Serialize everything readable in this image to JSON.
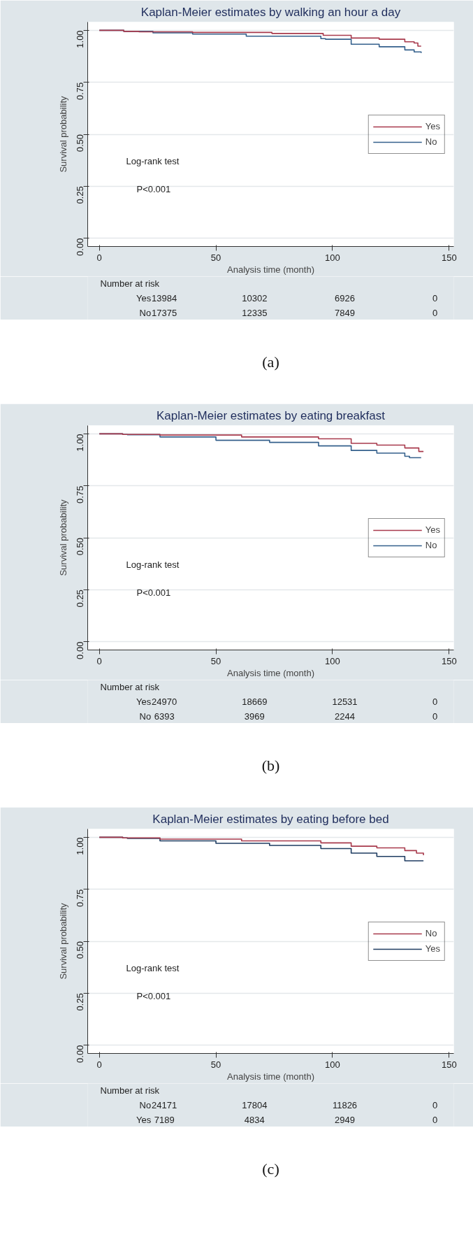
{
  "chart_data": [
    {
      "type": "step",
      "title": "Kaplan-Meier estimates by walking an hour a day",
      "xlabel": "Analysis time (month)",
      "ylabel": "Survival probability",
      "xlim": [
        -5,
        152
      ],
      "ylim": [
        -0.04,
        1.04
      ],
      "xticks": [
        0,
        50,
        100,
        150
      ],
      "yticks": [
        {
          "value": 0,
          "label": "0.00"
        },
        {
          "value": 0.25,
          "label": "0.25"
        },
        {
          "value": 0.5,
          "label": "0.50"
        },
        {
          "value": 0.75,
          "label": "0.75"
        },
        {
          "value": 1,
          "label": "1.00"
        }
      ],
      "grid": "y",
      "legend": "right",
      "line_style": "solid",
      "series": [
        {
          "name": "Yes",
          "color": "#a83a4c",
          "x": [
            0,
            10.5,
            12,
            17,
            40,
            74,
            96,
            108,
            120,
            131,
            135,
            136.6,
            138
          ],
          "values": [
            1,
            0.995,
            0.995,
            0.993,
            0.99,
            0.985,
            0.976,
            0.963,
            0.957,
            0.945,
            0.939,
            0.924,
            0.924
          ]
        },
        {
          "name": "No",
          "color": "#34608c",
          "x": [
            0,
            10.5,
            23,
            40,
            63,
            95,
            97,
            108,
            120,
            131,
            135,
            138
          ],
          "values": [
            1,
            0.995,
            0.988,
            0.982,
            0.972,
            0.96,
            0.957,
            0.933,
            0.921,
            0.906,
            0.896,
            0.891
          ]
        }
      ],
      "annotations": [
        "Log-rank test",
        "P<0.001",
        "Number at risk",
        "Yes",
        "13984",
        "10302",
        "6926",
        "0",
        "No",
        "17375",
        "12335",
        "7849",
        "0",
        "(a)"
      ]
    },
    {
      "type": "step",
      "title": "Kaplan-Meier estimates by eating breakfast",
      "xlabel": "Analysis time (month)",
      "ylabel": "Survival probability",
      "xlim": [
        -5,
        152
      ],
      "ylim": [
        -0.04,
        1.04
      ],
      "xticks": [
        0,
        50,
        100,
        150
      ],
      "yticks": [
        {
          "value": 0,
          "label": "0.00"
        },
        {
          "value": 0.25,
          "label": "0.25"
        },
        {
          "value": 0.5,
          "label": "0.50"
        },
        {
          "value": 0.75,
          "label": "0.75"
        },
        {
          "value": 1,
          "label": "1.00"
        }
      ],
      "grid": "y",
      "legend": "right",
      "line_style": "solid",
      "series": [
        {
          "name": "Yes",
          "color": "#a83a4c",
          "x": [
            0,
            10,
            26,
            61,
            94,
            108,
            119,
            131,
            137,
            139
          ],
          "values": [
            1,
            0.997,
            0.994,
            0.985,
            0.976,
            0.954,
            0.946,
            0.932,
            0.915,
            0.915
          ]
        },
        {
          "name": "No",
          "color": "#34608c",
          "x": [
            0,
            10,
            12,
            26,
            50,
            73,
            94,
            108,
            119,
            131,
            133,
            138
          ],
          "values": [
            1,
            0.997,
            0.996,
            0.985,
            0.969,
            0.959,
            0.942,
            0.92,
            0.907,
            0.892,
            0.885,
            0.885
          ]
        }
      ],
      "annotations": [
        "Log-rank test",
        "P<0.001",
        "Number at risk",
        "Yes",
        "24970",
        "18669",
        "12531",
        "0",
        "No",
        "6393",
        "3969",
        "2244",
        "0",
        "(b)"
      ]
    },
    {
      "type": "step",
      "title": "Kaplan-Meier estimates by eating before bed",
      "xlabel": "Analysis time (month)",
      "ylabel": "Survival probability",
      "xlim": [
        -5,
        152
      ],
      "ylim": [
        -0.04,
        1.04
      ],
      "xticks": [
        0,
        50,
        100,
        150
      ],
      "yticks": [
        {
          "value": 0,
          "label": "0.00"
        },
        {
          "value": 0.25,
          "label": "0.25"
        },
        {
          "value": 0.5,
          "label": "0.50"
        },
        {
          "value": 0.75,
          "label": "0.75"
        },
        {
          "value": 1,
          "label": "1.00"
        }
      ],
      "grid": "y",
      "legend": "right",
      "line_style": "solid",
      "series": [
        {
          "name": "No",
          "color": "#a83a4c",
          "x": [
            0,
            10,
            26,
            61,
            95,
            108,
            119,
            131,
            136,
            139
          ],
          "values": [
            1,
            0.997,
            0.991,
            0.983,
            0.973,
            0.957,
            0.949,
            0.936,
            0.924,
            0.914
          ]
        },
        {
          "name": "Yes",
          "color": "#1f3d62",
          "x": [
            0,
            10,
            12,
            26,
            50,
            73,
            95,
            108,
            119,
            131,
            139
          ],
          "values": [
            1,
            0.997,
            0.995,
            0.983,
            0.971,
            0.961,
            0.946,
            0.924,
            0.908,
            0.887,
            0.887
          ]
        }
      ],
      "annotations": [
        "Log-rank test",
        "P<0.001",
        "Number at risk",
        "No",
        "24171",
        "17804",
        "11826",
        "0",
        "Yes",
        "7189",
        "4834",
        "2949",
        "0",
        "(c)"
      ]
    }
  ]
}
